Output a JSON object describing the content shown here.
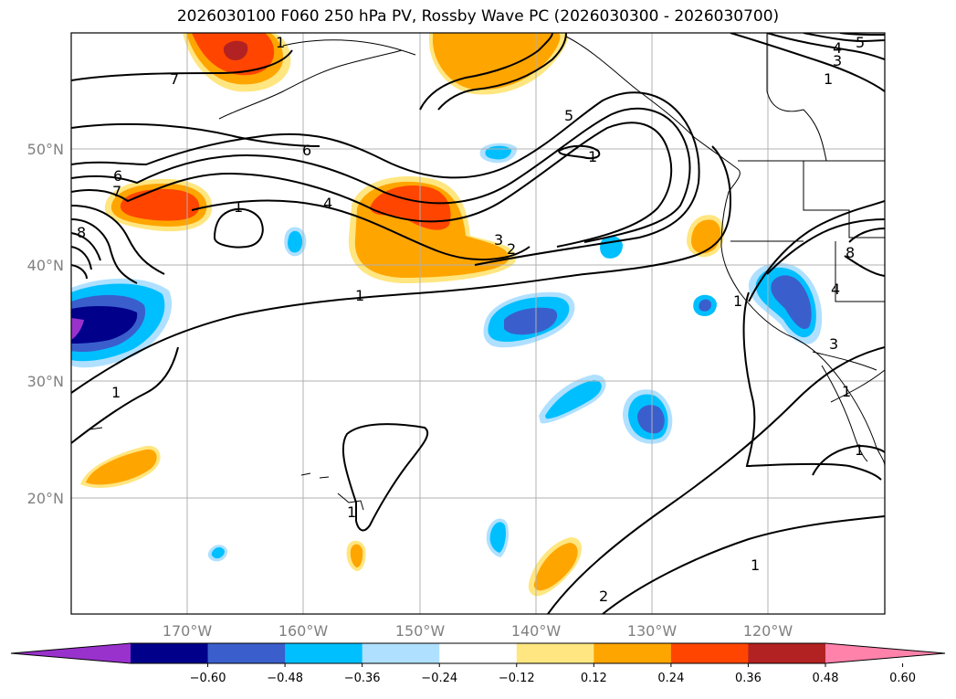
{
  "title": "2026030100 F060 250 hPa PV, Rossby Wave PC (2026030300 - 2026030700)",
  "lat_labels": [
    "50°N",
    "40°N",
    "30°N",
    "20°N"
  ],
  "lon_labels": [
    "170°W",
    "160°W",
    "150°W",
    "140°W",
    "130°W",
    "120°W"
  ],
  "colorbar": {
    "ticks": [
      "−0.60",
      "−0.48",
      "−0.36",
      "−0.24",
      "−0.12",
      "0.12",
      "0.24",
      "0.36",
      "0.48",
      "0.60"
    ],
    "colors": [
      "#9932cc",
      "#00008b",
      "#3a5fcd",
      "#00bfff",
      "#b0e0ff",
      "#ffffff",
      "#ffe680",
      "#ffa500",
      "#ff4500",
      "#b22222",
      "#ff82ab"
    ]
  },
  "contour_labels": [
    "7",
    "6",
    "7",
    "8",
    "1",
    "4",
    "6",
    "5",
    "1",
    "3",
    "2",
    "1",
    "1",
    "1",
    "2",
    "1",
    "1",
    "1",
    "1",
    "8",
    "4",
    "3",
    "1",
    "5",
    "4",
    "3",
    "1"
  ],
  "colors": {
    "neg_extreme": "#9932cc",
    "neg_dark": "#00008b",
    "neg_mid": "#3a5fcd",
    "neg_light": "#00bfff",
    "neg_pale": "#b0e0ff",
    "pos_pale": "#ffe680",
    "pos_light": "#ffa500",
    "pos_mid": "#ff4500",
    "pos_dark": "#b22222",
    "pos_extreme": "#ff82ab"
  }
}
